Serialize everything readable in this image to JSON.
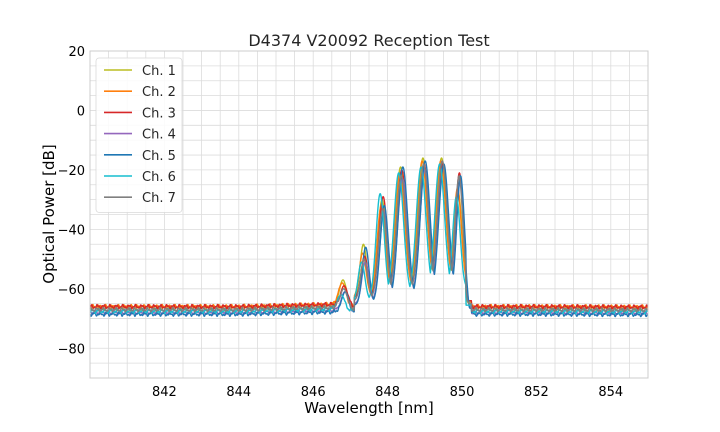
{
  "chart_data": {
    "type": "line",
    "title": "D4374 V20092 Reception Test",
    "xlabel": "Wavelength [nm]",
    "ylabel": "Optical Power [dB]",
    "xlim": [
      840,
      855
    ],
    "ylim": [
      -90,
      20
    ],
    "x_ticks": [
      842,
      844,
      846,
      848,
      850,
      852,
      854
    ],
    "y_ticks": [
      20,
      0,
      -20,
      -40,
      -60,
      -80
    ],
    "x_minor_step": 0.5,
    "y_minor_step": 5,
    "grid": true,
    "legend_position": "top-left",
    "series": [
      {
        "name": "Ch. 1",
        "color": "#bcbd22",
        "baseline": -66.5,
        "peak_offset": 0.0,
        "peaks": [
          -57,
          -45,
          -30,
          -19,
          -16,
          -16,
          -28
        ]
      },
      {
        "name": "Ch. 2",
        "color": "#ff7f0e",
        "baseline": -66.0,
        "peak_offset": -0.02,
        "peaks": [
          -58,
          -48,
          -32,
          -21,
          -17,
          -17,
          -26
        ]
      },
      {
        "name": "Ch. 3",
        "color": "#d62728",
        "baseline": -66.0,
        "peak_offset": 0.03,
        "peaks": [
          -59,
          -49,
          -29,
          -20,
          -18,
          -18,
          -21
        ]
      },
      {
        "name": "Ch. 4",
        "color": "#9467bd",
        "baseline": -68.0,
        "peak_offset": 0.05,
        "peaks": [
          -61,
          -51,
          -34,
          -23,
          -20,
          -19,
          -24
        ]
      },
      {
        "name": "Ch. 5",
        "color": "#1f77b4",
        "baseline": -68.5,
        "peak_offset": 0.06,
        "peaks": [
          -61,
          -46,
          -32,
          -19,
          -17,
          -18,
          -22
        ]
      },
      {
        "name": "Ch. 6",
        "color": "#17becf",
        "baseline": -67.5,
        "peak_offset": -0.05,
        "peaks": [
          -62,
          -51,
          -28,
          -21,
          -19,
          -18,
          -29
        ]
      },
      {
        "name": "Ch. 7",
        "color": "#7f7f7f",
        "baseline": -67.0,
        "peak_offset": 0.02,
        "peaks": [
          -60,
          -50,
          -33,
          -22,
          -18,
          -17,
          -22
        ]
      }
    ],
    "peak_wavelengths": [
      846.8,
      847.35,
      847.85,
      848.35,
      848.95,
      849.45,
      849.9
    ]
  }
}
